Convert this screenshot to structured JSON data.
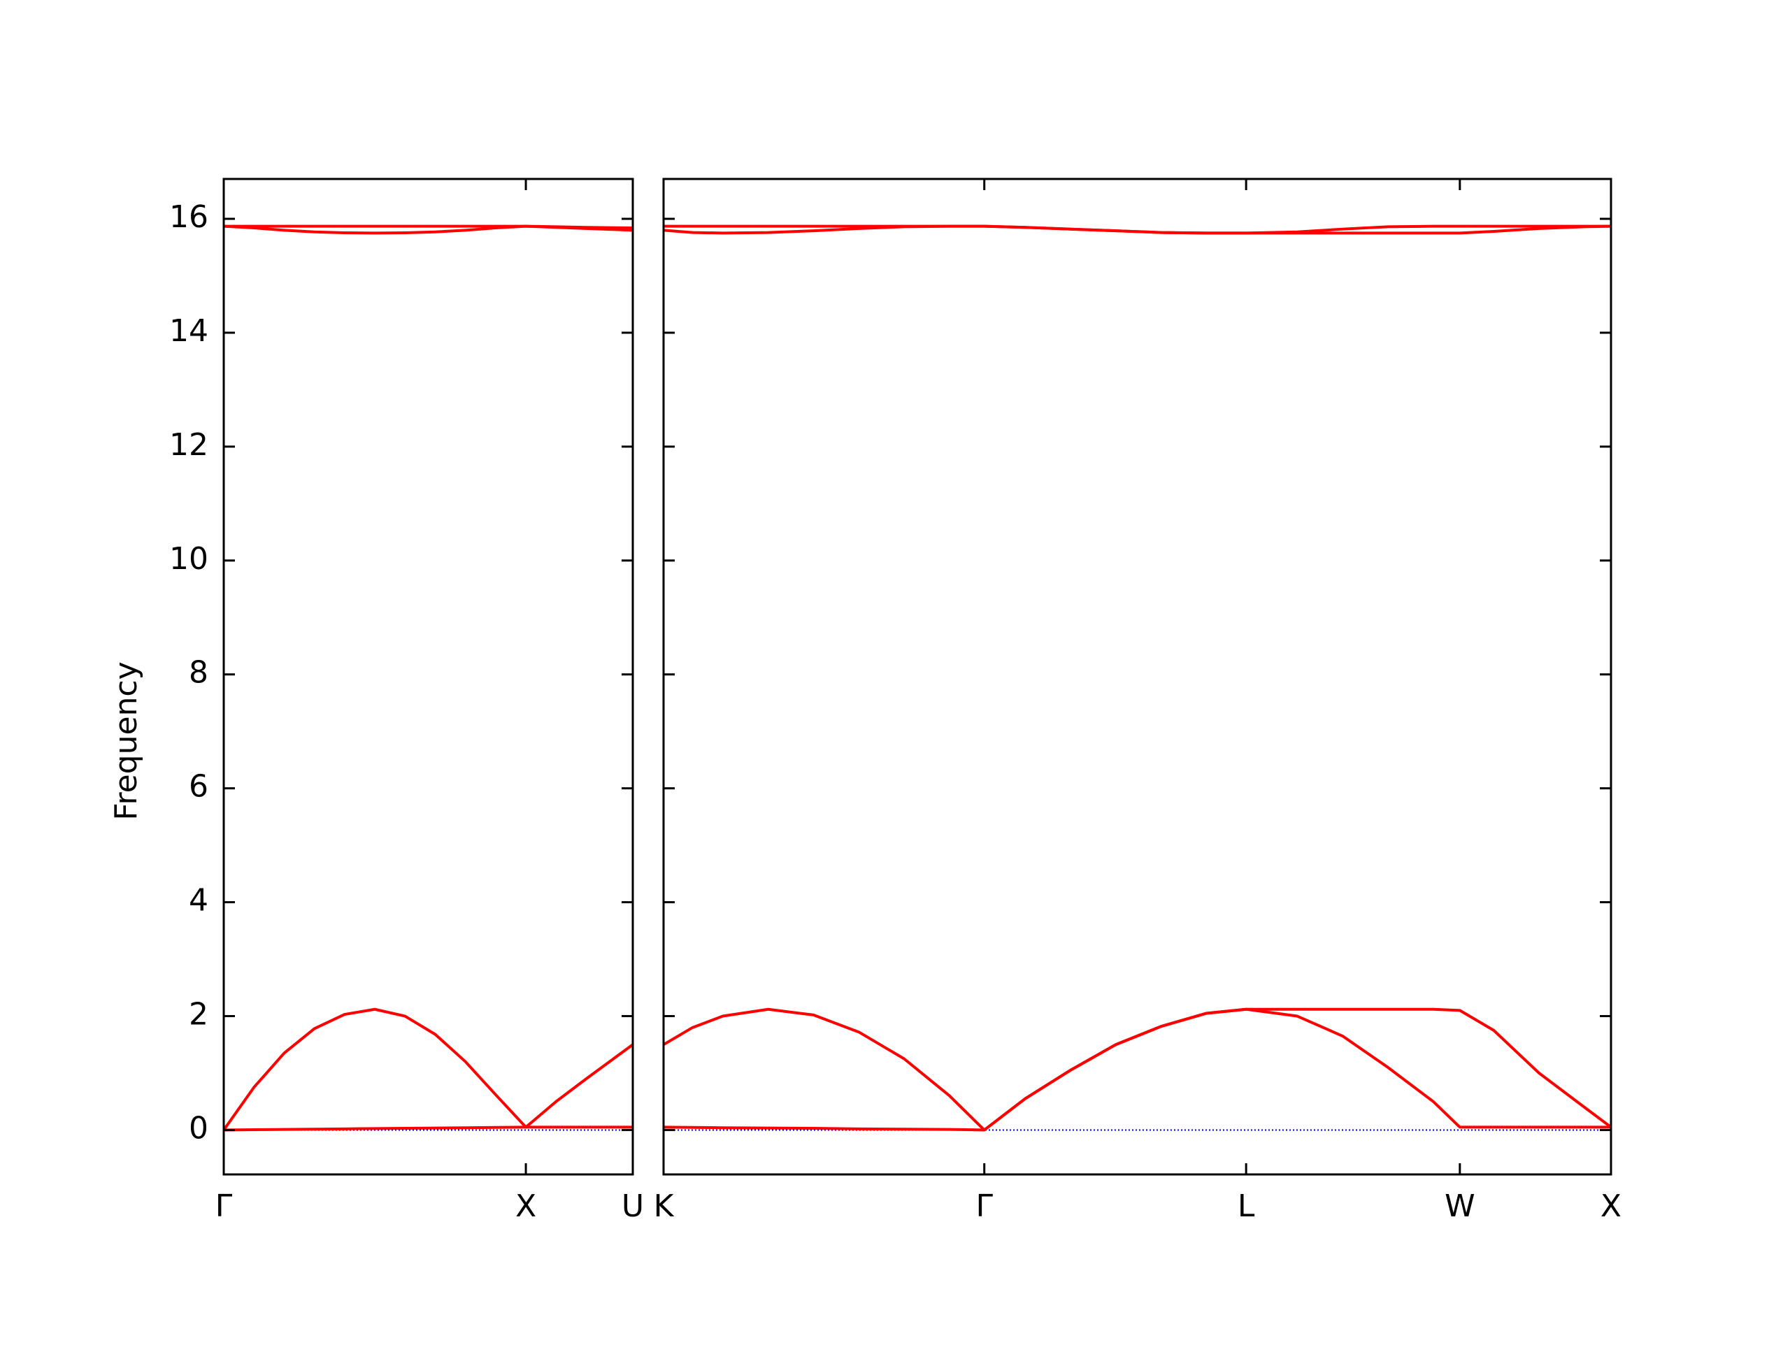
{
  "chart_data": [
    {
      "type": "line",
      "y_label": "Frequency",
      "x": [
        0,
        0.1,
        0.2,
        0.3,
        0.4,
        0.5,
        0.6,
        0.7,
        0.8,
        0.9,
        1.0,
        1.1,
        1.2,
        1.354
      ],
      "xlim": [
        0,
        1.354
      ],
      "xticks": [
        {
          "value": 0,
          "label": "Γ"
        },
        {
          "value": 1.0,
          "label": "X"
        },
        {
          "value": 1.354,
          "label": "U"
        }
      ],
      "ylim": [
        -0.78,
        16.7
      ],
      "yticks": [
        0,
        2,
        4,
        6,
        8,
        10,
        12,
        14,
        16
      ],
      "zero_line_color": "#0000cc",
      "series": [
        {
          "color": "#ff0000",
          "values": [
            0,
            0.005,
            0.01,
            0.015,
            0.02,
            0.025,
            0.03,
            0.035,
            0.04,
            0.045,
            0.05,
            0.05,
            0.05,
            0.05
          ]
        },
        {
          "color": "#ff0000",
          "values": [
            0,
            0.75,
            1.35,
            1.78,
            2.03,
            2.12,
            2.0,
            1.68,
            1.2,
            0.62,
            0.05,
            0.5,
            0.9,
            1.5
          ]
        },
        {
          "color": "#ff0000",
          "values": [
            15.87,
            15.87,
            15.87,
            15.87,
            15.87,
            15.87,
            15.87,
            15.87,
            15.87,
            15.87,
            15.87,
            15.86,
            15.85,
            15.84
          ]
        },
        {
          "color": "#ff0000",
          "values": [
            15.87,
            15.84,
            15.8,
            15.77,
            15.755,
            15.75,
            15.755,
            15.77,
            15.8,
            15.84,
            15.87,
            15.85,
            15.83,
            15.8
          ]
        }
      ]
    },
    {
      "type": "line",
      "x": [
        1.354,
        1.45,
        1.55,
        1.7,
        1.85,
        2.0,
        2.15,
        2.3,
        2.415,
        2.55,
        2.7,
        2.85,
        3.0,
        3.15,
        3.281,
        3.45,
        3.6,
        3.75,
        3.9,
        3.988,
        4.1,
        4.25,
        4.4,
        4.488
      ],
      "xlim": [
        1.354,
        4.488
      ],
      "xticks": [
        {
          "value": 1.354,
          "label": "K"
        },
        {
          "value": 2.415,
          "label": "Γ"
        },
        {
          "value": 3.281,
          "label": "L"
        },
        {
          "value": 3.988,
          "label": "W"
        },
        {
          "value": 4.488,
          "label": "X"
        }
      ],
      "ylim": [
        -0.78,
        16.7
      ],
      "zero_line_color": "#0000cc",
      "series": [
        {
          "color": "#ff0000",
          "values": [
            0.05,
            0.045,
            0.04,
            0.035,
            0.03,
            0.02,
            0.015,
            0.01,
            0,
            0.55,
            1.05,
            1.5,
            1.82,
            2.05,
            2.12,
            2.0,
            1.65,
            1.1,
            0.5,
            0.05,
            0.05,
            0.05,
            0.05,
            0.05
          ]
        },
        {
          "color": "#ff0000",
          "values": [
            1.5,
            1.8,
            2.0,
            2.12,
            2.02,
            1.72,
            1.25,
            0.6,
            0,
            0.55,
            1.05,
            1.5,
            1.82,
            2.05,
            2.12,
            2.12,
            2.12,
            2.12,
            2.12,
            2.1,
            1.75,
            1.0,
            0.4,
            0.05
          ]
        },
        {
          "color": "#ff0000",
          "values": [
            15.87,
            15.87,
            15.87,
            15.87,
            15.87,
            15.87,
            15.87,
            15.87,
            15.87,
            15.85,
            15.82,
            15.79,
            15.76,
            15.75,
            15.75,
            15.77,
            15.82,
            15.86,
            15.87,
            15.87,
            15.87,
            15.87,
            15.87,
            15.87
          ]
        },
        {
          "color": "#ff0000",
          "values": [
            15.8,
            15.76,
            15.75,
            15.76,
            15.79,
            15.83,
            15.86,
            15.87,
            15.87,
            15.85,
            15.82,
            15.79,
            15.76,
            15.75,
            15.75,
            15.75,
            15.75,
            15.75,
            15.75,
            15.75,
            15.78,
            15.83,
            15.86,
            15.87
          ]
        }
      ]
    }
  ]
}
